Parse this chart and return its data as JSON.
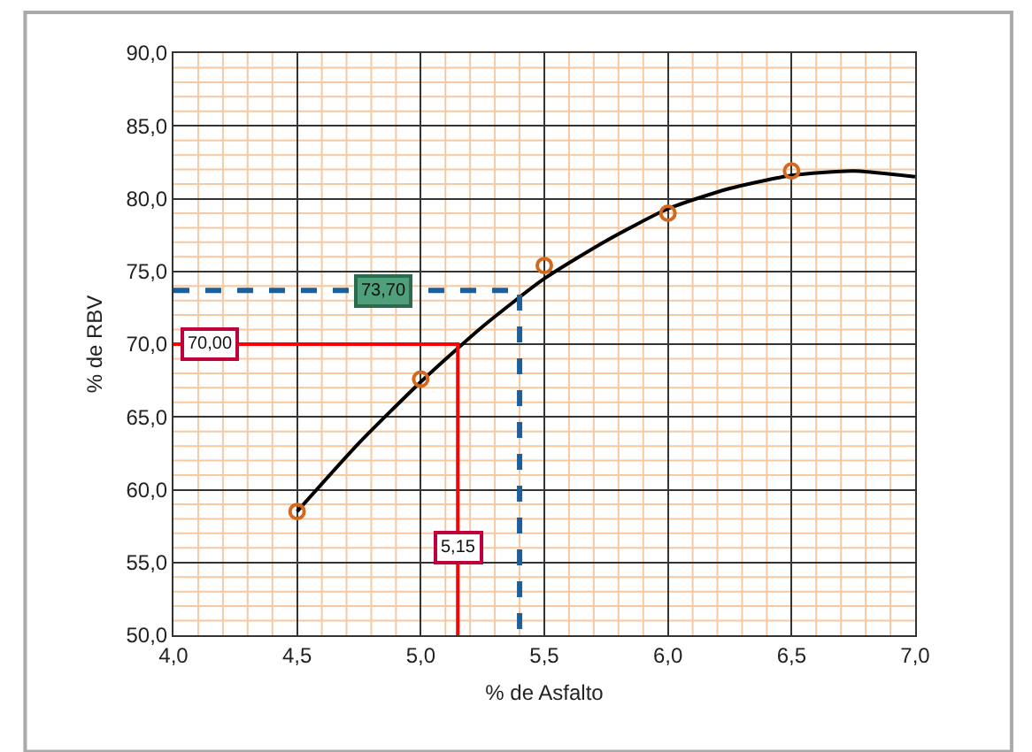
{
  "chart_data": {
    "type": "scatter",
    "xlabel": "% de Asfalto",
    "ylabel": "% de RBV",
    "xlim": [
      4,
      7
    ],
    "ylim": [
      50,
      90
    ],
    "xticks": [
      {
        "value": 4,
        "label": "4,0"
      },
      {
        "value": 4.1,
        "label": null
      },
      {
        "value": 4.2,
        "label": null
      },
      {
        "value": 4.3,
        "label": null
      },
      {
        "value": 4.4,
        "label": null
      },
      {
        "value": 4.5,
        "label": "4,5"
      },
      {
        "value": 4.6,
        "label": null
      },
      {
        "value": 4.7,
        "label": null
      },
      {
        "value": 4.8,
        "label": null
      },
      {
        "value": 4.9,
        "label": null
      },
      {
        "value": 5,
        "label": "5,0"
      },
      {
        "value": 5.1,
        "label": null
      },
      {
        "value": 5.2,
        "label": null
      },
      {
        "value": 5.3,
        "label": null
      },
      {
        "value": 5.4,
        "label": null
      },
      {
        "value": 5.5,
        "label": "5,5"
      },
      {
        "value": 5.6,
        "label": null
      },
      {
        "value": 5.7,
        "label": null
      },
      {
        "value": 5.8,
        "label": null
      },
      {
        "value": 5.9,
        "label": null
      },
      {
        "value": 6,
        "label": "6,0"
      },
      {
        "value": 6.1,
        "label": null
      },
      {
        "value": 6.2,
        "label": null
      },
      {
        "value": 6.3,
        "label": null
      },
      {
        "value": 6.4,
        "label": null
      },
      {
        "value": 6.5,
        "label": "6,5"
      },
      {
        "value": 6.6,
        "label": null
      },
      {
        "value": 6.7,
        "label": null
      },
      {
        "value": 6.8,
        "label": null
      },
      {
        "value": 6.9,
        "label": null
      },
      {
        "value": 7,
        "label": "7,0"
      }
    ],
    "yticks": [
      {
        "value": 50,
        "label": "50,0"
      },
      {
        "value": 51,
        "label": null
      },
      {
        "value": 52,
        "label": null
      },
      {
        "value": 53,
        "label": null
      },
      {
        "value": 54,
        "label": null
      },
      {
        "value": 55,
        "label": "55,0"
      },
      {
        "value": 56,
        "label": null
      },
      {
        "value": 57,
        "label": null
      },
      {
        "value": 58,
        "label": null
      },
      {
        "value": 59,
        "label": null
      },
      {
        "value": 60,
        "label": "60,0"
      },
      {
        "value": 61,
        "label": null
      },
      {
        "value": 62,
        "label": null
      },
      {
        "value": 63,
        "label": null
      },
      {
        "value": 64,
        "label": null
      },
      {
        "value": 65,
        "label": "65,0"
      },
      {
        "value": 66,
        "label": null
      },
      {
        "value": 67,
        "label": null
      },
      {
        "value": 68,
        "label": null
      },
      {
        "value": 69,
        "label": null
      },
      {
        "value": 70,
        "label": "70,0"
      },
      {
        "value": 71,
        "label": null
      },
      {
        "value": 72,
        "label": null
      },
      {
        "value": 73,
        "label": null
      },
      {
        "value": 74,
        "label": null
      },
      {
        "value": 75,
        "label": "75,0"
      },
      {
        "value": 76,
        "label": null
      },
      {
        "value": 77,
        "label": null
      },
      {
        "value": 78,
        "label": null
      },
      {
        "value": 79,
        "label": null
      },
      {
        "value": 80,
        "label": "80,0"
      },
      {
        "value": 81,
        "label": null
      },
      {
        "value": 82,
        "label": null
      },
      {
        "value": 83,
        "label": null
      },
      {
        "value": 84,
        "label": null
      },
      {
        "value": 85,
        "label": "85,0"
      },
      {
        "value": 86,
        "label": null
      },
      {
        "value": 87,
        "label": null
      },
      {
        "value": 88,
        "label": null
      },
      {
        "value": 89,
        "label": null
      },
      {
        "value": 90,
        "label": "90,0"
      }
    ],
    "grid": true,
    "series": [
      {
        "type": "line",
        "color": "#000000",
        "line_style": "solid",
        "marker": "none",
        "x": [
          4.5,
          4.75,
          5,
          5.25,
          5.5,
          5.75,
          6,
          6.25,
          6.5,
          6.75,
          7
        ],
        "values": [
          58.5,
          63.2,
          67.4,
          71.2,
          74.5,
          77.1,
          79.3,
          80.7,
          81.6,
          81.9,
          81.5
        ]
      },
      {
        "color": "#d2691e",
        "marker": "circle",
        "x": [
          4.5,
          5,
          5.5,
          6,
          6.5
        ],
        "values": [
          58.5,
          67.6,
          75.4,
          79,
          81.9
        ]
      },
      {
        "type": "line",
        "color": "#ff0000",
        "line_style": "solid",
        "marker": "none",
        "x": [
          4,
          5.15,
          5.15
        ],
        "values": [
          70,
          70,
          50
        ]
      },
      {
        "type": "line",
        "color": "#1f5f99",
        "line_style": "dashed",
        "marker": "none",
        "x": [
          4,
          5.4,
          5.4
        ],
        "values": [
          73.7,
          73.7,
          50
        ]
      }
    ],
    "annotations": [
      {
        "text": "70,00",
        "x": 4.15,
        "y": 70
      },
      {
        "text": "73,70",
        "x": 4.85,
        "y": 73.7
      },
      {
        "text": "5,15",
        "x": 5.15,
        "y": 56
      }
    ]
  }
}
